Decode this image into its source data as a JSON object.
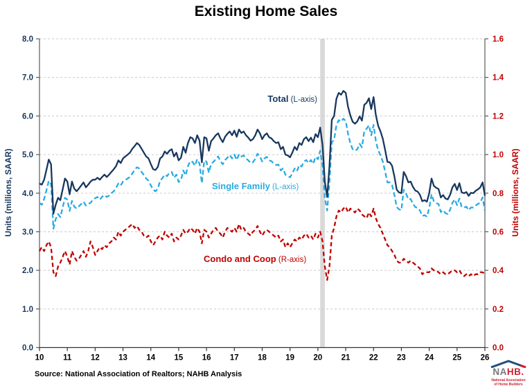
{
  "title": "Existing Home Sales",
  "source_note": "Source: National Association of Realtors; NAHB Analysis",
  "annotations": {
    "total": {
      "bold": "Total",
      "normal": " (L-axis)"
    },
    "single_family": {
      "bold": "Single Family",
      "normal": " (L-axis)"
    },
    "condo": {
      "bold": "Condo and Coop",
      "normal": " (R-axis)"
    }
  },
  "logo": {
    "na": "NA",
    "hb": "HB.",
    "sub1": "National Association",
    "sub2": "of Home Builders"
  },
  "colors": {
    "total_line": "#17375E",
    "single_family_line": "#29ABE2",
    "condo_line": "#C00000",
    "left_axis_text": "#17375E",
    "right_axis_text": "#C00000",
    "gridline": "#C9C9C9",
    "recession_band": "#D9D9D9",
    "logo_gray": "#77787B",
    "logo_red": "#CF2030",
    "logo_roof_blue": "#1F4E79"
  },
  "chart_data": {
    "type": "line",
    "title": "Existing Home Sales",
    "grid": "horizontal-dashed",
    "x": {
      "frequency": "monthly",
      "start": "2010-01",
      "end": "2026-01",
      "tick_labels": [
        "10",
        "11",
        "12",
        "13",
        "14",
        "15",
        "16",
        "17",
        "18",
        "19",
        "20",
        "21",
        "22",
        "23",
        "24",
        "25",
        "26"
      ]
    },
    "left_axis": {
      "label": "Units (millions, SAAR)",
      "range": [
        0,
        8
      ],
      "tick_step": 1,
      "tick_labels": [
        "0.0",
        "1.0",
        "2.0",
        "3.0",
        "4.0",
        "5.0",
        "6.0",
        "7.0",
        "8.0"
      ]
    },
    "right_axis": {
      "label": "Units (millions, SAAR)",
      "range": [
        0,
        1.6
      ],
      "tick_step": 0.2,
      "tick_labels": [
        "0.0",
        "0.2",
        "0.4",
        "0.6",
        "0.8",
        "1.0",
        "1.2",
        "1.4",
        "1.6"
      ]
    },
    "recession_band": {
      "from": "2020-02",
      "to": "2020-04"
    },
    "series": [
      {
        "name": "Total",
        "axis": "left",
        "line_style": "solid",
        "color": "#17375E",
        "values": [
          4.25,
          4.22,
          4.35,
          4.6,
          4.87,
          4.75,
          3.47,
          3.7,
          3.88,
          3.82,
          4.1,
          4.38,
          4.3,
          3.97,
          4.3,
          4.12,
          4.05,
          4.12,
          4.2,
          4.28,
          4.15,
          4.22,
          4.3,
          4.35,
          4.35,
          4.4,
          4.35,
          4.42,
          4.48,
          4.42,
          4.48,
          4.55,
          4.62,
          4.7,
          4.85,
          4.78,
          4.9,
          4.95,
          5.0,
          5.05,
          5.15,
          5.22,
          5.3,
          5.25,
          5.15,
          5.05,
          4.95,
          4.9,
          4.75,
          4.62,
          4.6,
          4.68,
          4.9,
          4.95,
          5.08,
          5.02,
          5.1,
          5.14,
          4.95,
          5.05,
          4.85,
          4.92,
          5.2,
          5.05,
          5.3,
          5.45,
          5.42,
          5.3,
          5.5,
          5.36,
          4.8,
          5.45,
          5.42,
          5.1,
          5.35,
          5.42,
          5.5,
          5.55,
          5.42,
          5.32,
          5.46,
          5.54,
          5.6,
          5.5,
          5.62,
          5.46,
          5.65,
          5.56,
          5.6,
          5.5,
          5.44,
          5.36,
          5.4,
          5.5,
          5.65,
          5.55,
          5.4,
          5.5,
          5.55,
          5.45,
          5.42,
          5.35,
          5.3,
          5.32,
          5.14,
          5.2,
          5.0,
          4.98,
          4.93,
          5.05,
          5.2,
          5.12,
          5.3,
          5.25,
          5.4,
          5.45,
          5.35,
          5.44,
          5.32,
          5.53,
          5.45,
          5.7,
          5.25,
          4.3,
          3.9,
          4.7,
          5.9,
          6.0,
          6.45,
          6.6,
          6.55,
          6.65,
          6.6,
          6.24,
          6.01,
          5.85,
          5.8,
          5.86,
          5.99,
          5.88,
          6.29,
          6.34,
          6.46,
          6.18,
          6.49,
          6.02,
          5.75,
          5.6,
          5.41,
          5.12,
          4.81,
          4.8,
          4.71,
          4.43,
          4.09,
          4.02,
          4.0,
          4.55,
          4.44,
          4.28,
          4.3,
          4.16,
          4.07,
          4.04,
          3.96,
          3.79,
          3.82,
          3.78,
          4.0,
          4.38,
          4.19,
          4.14,
          4.11,
          3.89,
          3.95,
          3.86,
          3.84,
          3.96,
          4.15,
          4.24,
          4.08,
          4.26,
          4.02,
          4.0,
          4.03,
          3.93,
          4.01,
          4.0,
          4.06,
          4.1,
          4.15,
          4.28,
          3.93
        ]
      },
      {
        "name": "Single Family",
        "axis": "left",
        "line_style": "dashed",
        "color": "#29ABE2",
        "values": [
          3.75,
          3.7,
          3.85,
          4.07,
          4.32,
          4.23,
          3.08,
          3.33,
          3.46,
          3.38,
          3.63,
          3.88,
          3.83,
          3.54,
          3.8,
          3.65,
          3.6,
          3.66,
          3.72,
          3.78,
          3.68,
          3.72,
          3.75,
          3.83,
          3.87,
          3.9,
          3.83,
          3.91,
          3.95,
          3.9,
          3.94,
          4.0,
          4.05,
          4.14,
          4.25,
          4.2,
          4.3,
          4.34,
          4.38,
          4.42,
          4.51,
          4.6,
          4.67,
          4.64,
          4.55,
          4.47,
          4.38,
          4.32,
          4.2,
          4.09,
          4.05,
          4.11,
          4.32,
          4.39,
          4.48,
          4.44,
          4.53,
          4.55,
          4.4,
          4.48,
          4.29,
          4.34,
          4.59,
          4.46,
          4.7,
          4.83,
          4.81,
          4.71,
          4.88,
          4.76,
          4.26,
          4.84,
          4.82,
          4.53,
          4.76,
          4.81,
          4.88,
          4.95,
          4.83,
          4.75,
          4.86,
          4.92,
          4.99,
          4.9,
          5.0,
          4.86,
          5.01,
          4.95,
          4.98,
          4.9,
          4.85,
          4.78,
          4.8,
          4.89,
          5.02,
          4.95,
          4.82,
          4.9,
          4.94,
          4.85,
          4.83,
          4.77,
          4.73,
          4.74,
          4.59,
          4.64,
          4.48,
          4.44,
          4.41,
          4.51,
          4.64,
          4.57,
          4.73,
          4.69,
          4.82,
          4.86,
          4.78,
          4.86,
          4.76,
          4.94,
          4.88,
          5.1,
          4.7,
          3.88,
          3.55,
          4.28,
          5.32,
          5.38,
          5.77,
          5.89,
          5.85,
          5.93,
          5.87,
          5.54,
          5.29,
          5.14,
          5.1,
          5.14,
          5.28,
          5.19,
          5.61,
          5.67,
          5.76,
          5.5,
          5.77,
          5.35,
          5.11,
          4.98,
          4.82,
          4.56,
          4.28,
          4.28,
          4.21,
          3.95,
          3.64,
          3.58,
          3.56,
          4.09,
          3.99,
          3.84,
          3.85,
          3.72,
          3.64,
          3.62,
          3.55,
          3.41,
          3.43,
          3.39,
          3.61,
          3.97,
          3.79,
          3.74,
          3.72,
          3.51,
          3.56,
          3.48,
          3.46,
          3.57,
          3.75,
          3.84,
          3.69,
          3.86,
          3.64,
          3.63,
          3.65,
          3.56,
          3.63,
          3.63,
          3.68,
          3.72,
          3.76,
          3.89,
          3.55
        ]
      },
      {
        "name": "Condo and Coop",
        "axis": "right",
        "line_style": "dashed",
        "color": "#C00000",
        "values": [
          0.5,
          0.52,
          0.5,
          0.53,
          0.55,
          0.52,
          0.39,
          0.37,
          0.42,
          0.44,
          0.47,
          0.5,
          0.47,
          0.43,
          0.5,
          0.47,
          0.45,
          0.46,
          0.48,
          0.5,
          0.47,
          0.5,
          0.55,
          0.52,
          0.48,
          0.5,
          0.52,
          0.51,
          0.53,
          0.52,
          0.54,
          0.55,
          0.57,
          0.56,
          0.6,
          0.58,
          0.6,
          0.61,
          0.62,
          0.63,
          0.64,
          0.62,
          0.63,
          0.61,
          0.6,
          0.58,
          0.57,
          0.58,
          0.55,
          0.53,
          0.55,
          0.57,
          0.58,
          0.56,
          0.6,
          0.58,
          0.57,
          0.59,
          0.55,
          0.57,
          0.56,
          0.58,
          0.61,
          0.59,
          0.6,
          0.62,
          0.61,
          0.59,
          0.62,
          0.6,
          0.54,
          0.61,
          0.6,
          0.57,
          0.59,
          0.61,
          0.62,
          0.6,
          0.59,
          0.57,
          0.6,
          0.62,
          0.61,
          0.6,
          0.62,
          0.6,
          0.64,
          0.61,
          0.62,
          0.6,
          0.59,
          0.58,
          0.6,
          0.61,
          0.63,
          0.6,
          0.58,
          0.6,
          0.61,
          0.6,
          0.59,
          0.58,
          0.57,
          0.58,
          0.55,
          0.56,
          0.52,
          0.54,
          0.52,
          0.54,
          0.56,
          0.55,
          0.57,
          0.56,
          0.58,
          0.59,
          0.57,
          0.58,
          0.56,
          0.59,
          0.57,
          0.6,
          0.55,
          0.42,
          0.35,
          0.42,
          0.58,
          0.62,
          0.68,
          0.71,
          0.7,
          0.72,
          0.73,
          0.7,
          0.72,
          0.71,
          0.7,
          0.72,
          0.71,
          0.69,
          0.68,
          0.67,
          0.7,
          0.68,
          0.72,
          0.67,
          0.64,
          0.62,
          0.59,
          0.56,
          0.53,
          0.52,
          0.5,
          0.48,
          0.45,
          0.44,
          0.44,
          0.46,
          0.45,
          0.44,
          0.45,
          0.44,
          0.43,
          0.42,
          0.41,
          0.38,
          0.39,
          0.39,
          0.39,
          0.41,
          0.4,
          0.4,
          0.39,
          0.38,
          0.39,
          0.38,
          0.38,
          0.39,
          0.4,
          0.4,
          0.39,
          0.4,
          0.38,
          0.37,
          0.38,
          0.37,
          0.38,
          0.37,
          0.38,
          0.38,
          0.39,
          0.39,
          0.38
        ]
      }
    ]
  }
}
